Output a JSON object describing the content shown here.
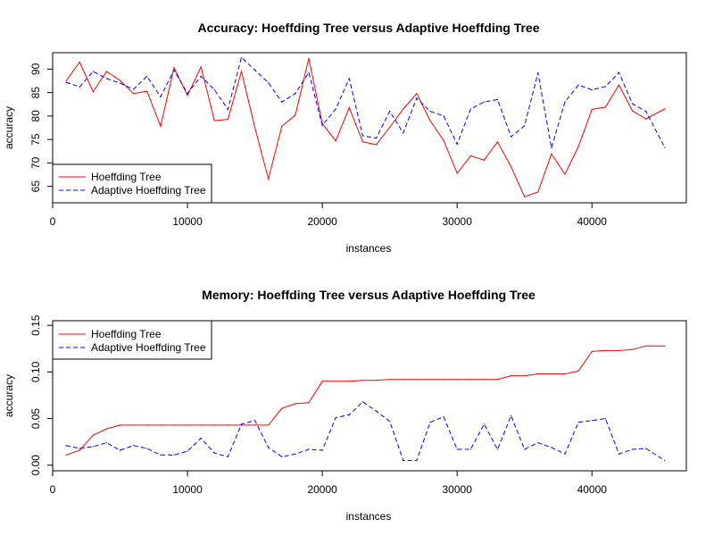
{
  "chart_data": [
    {
      "type": "line",
      "title": "Accuracy: Hoeffding Tree versus Adaptive Hoeffding Tree",
      "xlabel": "instances",
      "ylabel": "accuracy",
      "xlim": [
        0,
        47000
      ],
      "ylim": [
        61.5,
        93.5
      ],
      "x_ticks": [
        0,
        10000,
        20000,
        30000,
        40000
      ],
      "x_tick_labels": [
        "0",
        "10000",
        "20000",
        "30000",
        "40000"
      ],
      "y_ticks": [
        65,
        70,
        75,
        80,
        85,
        90
      ],
      "y_tick_labels": [
        "65",
        "70",
        "75",
        "80",
        "85",
        "90"
      ],
      "grid": false,
      "legend_position": "bottom-left",
      "x": [
        1000,
        2000,
        3000,
        4000,
        5000,
        6000,
        7000,
        8000,
        9000,
        10000,
        11000,
        12000,
        13000,
        14000,
        15000,
        16000,
        17000,
        18000,
        19000,
        20000,
        21000,
        22000,
        23000,
        24000,
        25000,
        26000,
        27000,
        28000,
        29000,
        30000,
        31000,
        32000,
        33000,
        34000,
        35000,
        36000,
        37000,
        38000,
        39000,
        40000,
        41000,
        42000,
        43000,
        44000,
        45400
      ],
      "series": [
        {
          "name": "Hoeffding Tree",
          "color": "#ff0000",
          "dash": "solid",
          "values": [
            87.5,
            91.5,
            85.2,
            89.5,
            87.6,
            84.8,
            85.3,
            77.8,
            90.3,
            84.4,
            90.5,
            79.0,
            79.3,
            89.5,
            77.5,
            66.6,
            77.8,
            80.2,
            92.3,
            78.4,
            74.7,
            81.8,
            74.5,
            73.9,
            77.6,
            81.5,
            84.8,
            79.0,
            74.8,
            67.8,
            71.5,
            70.6,
            74.5,
            69.2,
            62.8,
            63.8,
            71.9,
            67.6,
            73.5,
            81.4,
            81.9,
            86.6,
            81.1,
            79.4,
            81.5
          ]
        },
        {
          "name": "Adaptive Hoeffding Tree",
          "color": "#0000ff",
          "dash": "dashed",
          "values": [
            87.2,
            86.2,
            89.5,
            88.0,
            87.0,
            85.7,
            88.5,
            84.1,
            89.8,
            84.8,
            88.5,
            85.6,
            81.4,
            92.5,
            89.8,
            87.1,
            83.0,
            84.8,
            89.3,
            78.0,
            81.5,
            88.0,
            75.8,
            75.3,
            81.0,
            76.4,
            83.8,
            81.0,
            80.0,
            74.0,
            81.5,
            83.0,
            83.5,
            75.6,
            77.9,
            89.2,
            73.2,
            83.0,
            86.6,
            85.6,
            86.3,
            89.3,
            82.6,
            81.0,
            73.3
          ]
        }
      ]
    },
    {
      "type": "line",
      "title": "Memory: Hoeffding Tree versus Adaptive Hoeffding Tree",
      "xlabel": "instances",
      "ylabel": "accuracy",
      "xlim": [
        0,
        47000
      ],
      "ylim": [
        -0.006,
        0.155
      ],
      "x_ticks": [
        0,
        10000,
        20000,
        30000,
        40000
      ],
      "x_tick_labels": [
        "0",
        "10000",
        "20000",
        "30000",
        "40000"
      ],
      "y_ticks": [
        0.0,
        0.05,
        0.1,
        0.15
      ],
      "y_tick_labels": [
        "0.00",
        "0.05",
        "0.10",
        "0.15"
      ],
      "grid": false,
      "legend_position": "top-left",
      "x": [
        1000,
        2000,
        3000,
        4000,
        5000,
        6000,
        7000,
        8000,
        9000,
        10000,
        11000,
        12000,
        13000,
        14000,
        15000,
        16000,
        17000,
        18000,
        19000,
        20000,
        21000,
        22000,
        23000,
        24000,
        25000,
        26000,
        27000,
        28000,
        29000,
        30000,
        31000,
        32000,
        33000,
        34000,
        35000,
        36000,
        37000,
        38000,
        39000,
        40000,
        41000,
        42000,
        43000,
        44000,
        45400
      ],
      "series": [
        {
          "name": "Hoeffding Tree",
          "color": "#ff0000",
          "dash": "solid",
          "values": [
            0.011,
            0.016,
            0.032,
            0.039,
            0.043,
            0.043,
            0.043,
            0.043,
            0.043,
            0.043,
            0.043,
            0.043,
            0.043,
            0.043,
            0.043,
            0.043,
            0.061,
            0.066,
            0.067,
            0.09,
            0.09,
            0.09,
            0.091,
            0.091,
            0.092,
            0.092,
            0.092,
            0.092,
            0.092,
            0.092,
            0.092,
            0.092,
            0.092,
            0.096,
            0.096,
            0.098,
            0.098,
            0.098,
            0.101,
            0.122,
            0.123,
            0.123,
            0.124,
            0.128,
            0.128
          ]
        },
        {
          "name": "Adaptive Hoeffding Tree",
          "color": "#0000ff",
          "dash": "dashed",
          "values": [
            0.021,
            0.018,
            0.02,
            0.024,
            0.016,
            0.021,
            0.018,
            0.011,
            0.011,
            0.015,
            0.029,
            0.013,
            0.009,
            0.044,
            0.048,
            0.019,
            0.009,
            0.012,
            0.017,
            0.016,
            0.051,
            0.054,
            0.068,
            0.058,
            0.047,
            0.005,
            0.005,
            0.046,
            0.052,
            0.017,
            0.017,
            0.044,
            0.017,
            0.053,
            0.017,
            0.024,
            0.019,
            0.012,
            0.046,
            0.048,
            0.05,
            0.012,
            0.017,
            0.018,
            0.005
          ]
        }
      ]
    }
  ]
}
